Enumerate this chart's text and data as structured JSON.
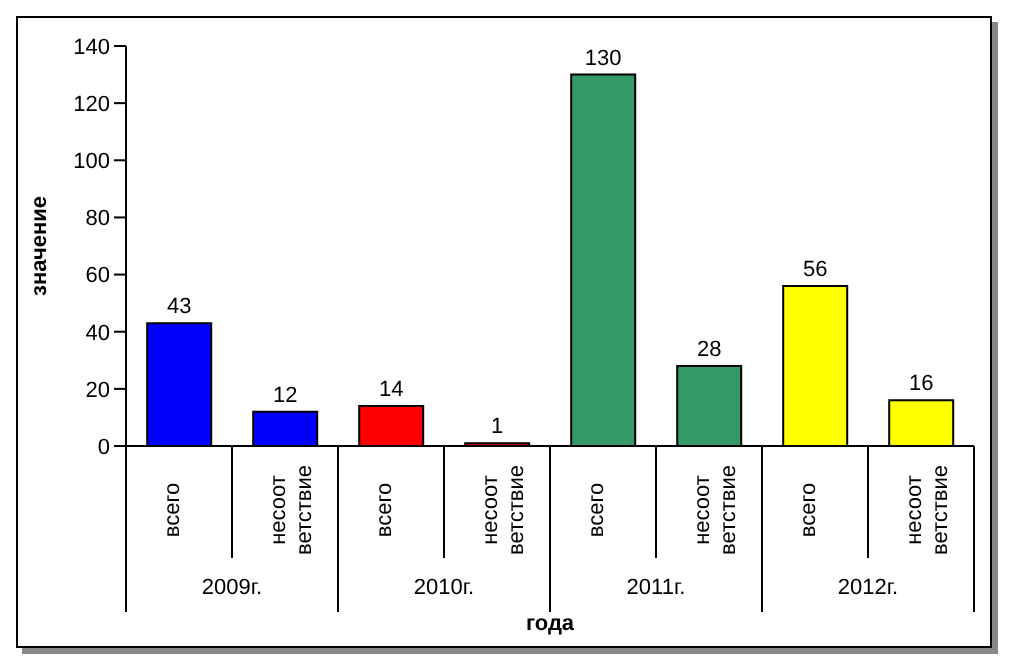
{
  "chart_data": {
    "type": "bar",
    "xlabel": "года",
    "ylabel": "значение",
    "categories": [
      "всего",
      "несоот ветствие",
      "всего",
      "несоот ветствие",
      "всего",
      "несоот ветствие",
      "всего",
      "несоот ветствие"
    ],
    "values": [
      43,
      12,
      14,
      1,
      130,
      28,
      56,
      16
    ],
    "colors": [
      "#0000ff",
      "#0000ff",
      "#ff0000",
      "#ff0000",
      "#339966",
      "#339966",
      "#ffff00",
      "#ffff00"
    ],
    "annotations": [
      "2009г.",
      "2010г.",
      "2011г.",
      "2012г."
    ],
    "ylim": [
      0,
      140
    ],
    "yticks": [
      0,
      20,
      40,
      60,
      80,
      100,
      120,
      140
    ],
    "data_labels": true,
    "grid": false,
    "legend": false
  }
}
